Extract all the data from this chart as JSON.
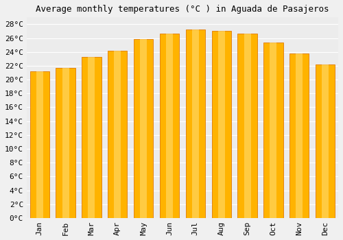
{
  "title": "Average monthly temperatures (°C ) in Aguada de Pasajeros",
  "months": [
    "Jan",
    "Feb",
    "Mar",
    "Apr",
    "May",
    "Jun",
    "Jul",
    "Aug",
    "Sep",
    "Oct",
    "Nov",
    "Dec"
  ],
  "values": [
    21.2,
    21.7,
    23.3,
    24.2,
    25.9,
    26.6,
    27.2,
    27.0,
    26.6,
    25.4,
    23.8,
    22.2
  ],
  "bar_color_main": "#FFB300",
  "bar_color_light": "#FFD966",
  "bar_color_dark": "#E07800",
  "background_color": "#f0f0f0",
  "plot_bg_color": "#ececec",
  "grid_color": "#ffffff",
  "ylim": [
    0,
    29
  ],
  "yticks": [
    0,
    2,
    4,
    6,
    8,
    10,
    12,
    14,
    16,
    18,
    20,
    22,
    24,
    26,
    28
  ],
  "ytick_labels": [
    "0°C",
    "2°C",
    "4°C",
    "6°C",
    "8°C",
    "10°C",
    "12°C",
    "14°C",
    "16°C",
    "18°C",
    "20°C",
    "22°C",
    "24°C",
    "26°C",
    "28°C"
  ],
  "title_fontsize": 9,
  "tick_fontsize": 8,
  "font_family": "monospace"
}
